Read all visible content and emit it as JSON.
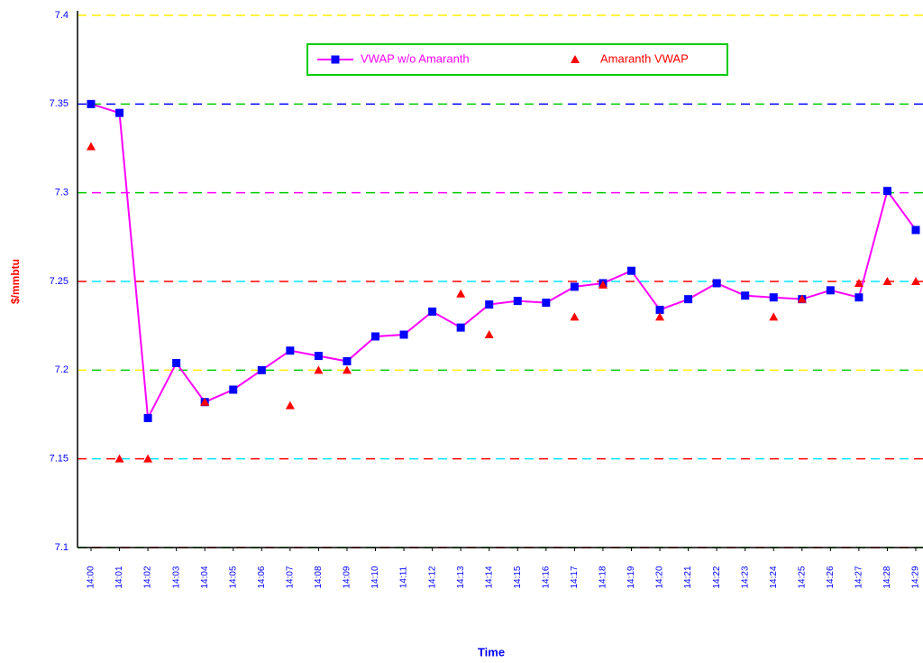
{
  "chart_data": {
    "type": "line",
    "x_label": "Time",
    "y_label": "$/mmbtu",
    "categories": [
      "14:00",
      "14:01",
      "14:02",
      "14:03",
      "14:04",
      "14:05",
      "14:06",
      "14:07",
      "14:08",
      "14:09",
      "14:10",
      "14:11",
      "14:12",
      "14:13",
      "14:14",
      "14:15",
      "14:16",
      "14:17",
      "14:18",
      "14:19",
      "14:20",
      "14:21",
      "14:22",
      "14:23",
      "14:24",
      "14:25",
      "14:26",
      "14:27",
      "14:28",
      "14:29"
    ],
    "series": [
      {
        "name": "VWAP w/o Amaranth",
        "color": "#ff00ff",
        "line_color_alt": "#00e5ff",
        "marker": "square",
        "marker_color": "#0000ff",
        "line": true,
        "values": [
          7.35,
          7.345,
          7.173,
          7.204,
          7.182,
          7.189,
          7.2,
          7.211,
          7.208,
          7.205,
          7.219,
          7.22,
          7.233,
          7.224,
          7.237,
          7.239,
          7.238,
          7.247,
          7.249,
          7.256,
          7.234,
          7.24,
          7.249,
          7.242,
          7.241,
          7.24,
          7.245,
          7.241,
          7.301,
          7.279
        ]
      },
      {
        "name": "Amaranth VWAP",
        "color": "#ff0000",
        "marker": "triangle",
        "marker_color": "#ff0000",
        "line": false,
        "values": [
          7.326,
          7.15,
          7.15,
          null,
          7.182,
          null,
          null,
          7.18,
          7.2,
          7.2,
          null,
          null,
          null,
          7.243,
          7.22,
          null,
          null,
          7.23,
          7.248,
          null,
          7.23,
          null,
          null,
          null,
          7.23,
          7.24,
          null,
          7.249,
          7.25,
          7.25
        ]
      }
    ],
    "ylim": [
      7.1,
      7.4
    ],
    "yticks": [
      7.1,
      7.15,
      7.2,
      7.25,
      7.3,
      7.35,
      7.4
    ],
    "grid": true,
    "grid_colors": [
      [
        "#00cc00",
        "#ff0000"
      ],
      [
        "#ff0000",
        "#00e5ff"
      ],
      [
        "#ffee00",
        "#00cc00"
      ],
      [
        "#ff0000",
        "#00e5ff"
      ],
      [
        "#00cc00",
        "#ff00ff"
      ],
      [
        "#0000ff",
        "#00cc00"
      ],
      [
        "#ffee00",
        "#ffee00"
      ]
    ],
    "legend": "top"
  }
}
